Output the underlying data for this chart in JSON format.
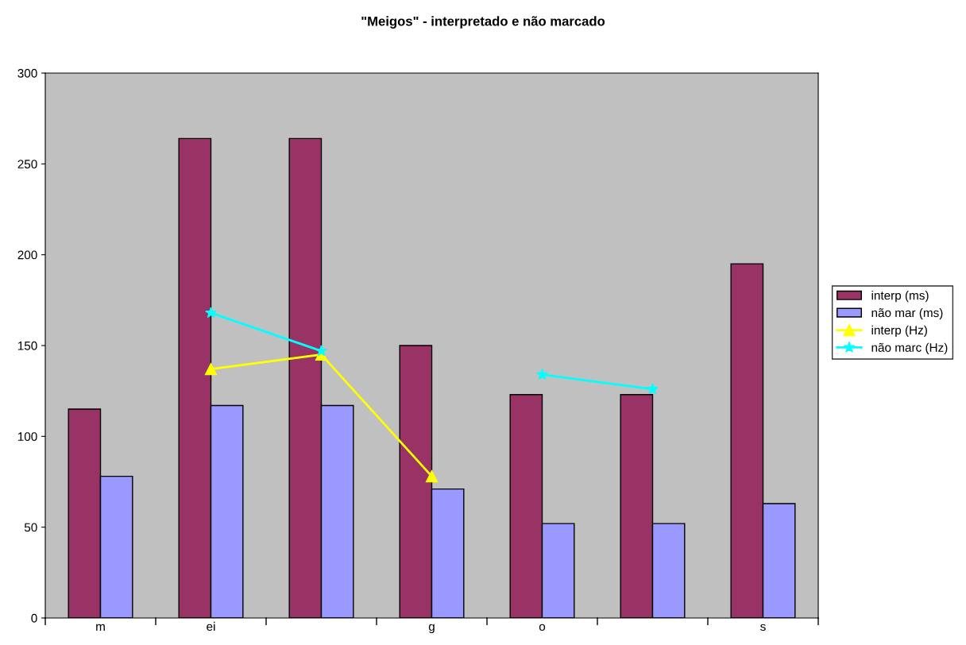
{
  "chart_data": {
    "type": "bar",
    "title": "\"Meigos\" - interpretado e não marcado",
    "categories": [
      "m",
      "ei",
      null,
      "g",
      "o",
      null,
      "s"
    ],
    "series": [
      {
        "name": "interp (ms)",
        "color": "#993366",
        "values": [
          115,
          264,
          264,
          150,
          123,
          123,
          195
        ]
      },
      {
        "name": "não mar (ms)",
        "color": "#9999ff",
        "values": [
          78,
          117,
          117,
          71,
          52,
          52,
          63
        ]
      },
      {
        "name": "interp (Hz)",
        "type": "line",
        "color": "#ffff00",
        "marker": "triangle",
        "values": [
          null,
          137,
          145,
          78,
          null,
          null,
          null
        ]
      },
      {
        "name": "não marc (Hz)",
        "type": "line",
        "color": "#00ffff",
        "marker": "star",
        "values": [
          null,
          168,
          147,
          null,
          134,
          126,
          null
        ]
      }
    ],
    "ylim": [
      0,
      300
    ],
    "yticks": [
      0,
      50,
      100,
      150,
      200,
      250,
      300
    ],
    "grid": false,
    "legend": "right"
  }
}
